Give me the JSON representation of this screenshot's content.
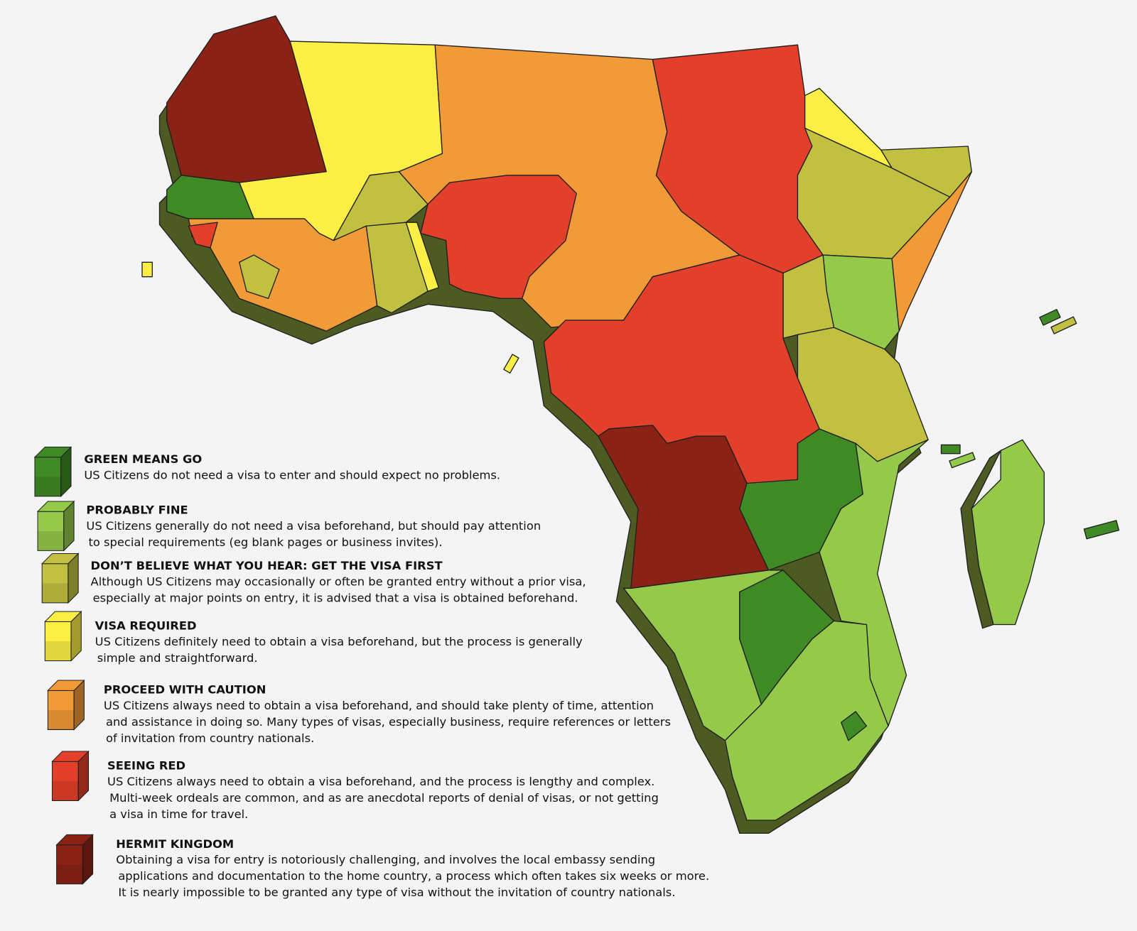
{
  "legend": {
    "items": [
      {
        "title": "GREEN MEANS GO",
        "color": "#3f8a24",
        "lines": [
          "US Citizens do not need a visa to enter and should expect no problems."
        ]
      },
      {
        "title": "PROBABLY FINE",
        "color": "#95c94a",
        "lines": [
          "US Citizens generally do not need a visa beforehand, but should pay attention",
          "to special requirements (eg blank pages or business invites)."
        ]
      },
      {
        "title": "DON’T BELIEVE WHAT YOU HEAR: GET THE VISA FIRST",
        "color": "#c2c041",
        "lines": [
          "Although US Citizens may occasionally or often be granted entry without a prior visa,",
          "especially at major points on entry,  it is advised that a visa is obtained beforehand."
        ]
      },
      {
        "title": "VISA REQUIRED",
        "color": "#fbef45",
        "lines": [
          "US Citizens definitely need to obtain a visa beforehand, but the process is generally",
          "simple and straightforward."
        ]
      },
      {
        "title": "PROCEED WITH CAUTION",
        "color": "#f19a38",
        "lines": [
          "US Citizens always need to obtain a visa beforehand, and should take plenty of time,  attention",
          "and assistance in doing so. Many types of visas, especially business, require references or letters",
          "of invitation from country nationals."
        ]
      },
      {
        "title": "SEEING RED",
        "color": "#e2402a",
        "lines": [
          "US Citizens always need to obtain a visa beforehand, and the process is lengthy and complex.",
          "Multi-week ordeals are common, and as are anecdotal reports of denial of visas, or not getting",
          "a visa in time for travel."
        ]
      },
      {
        "title": "HERMIT KINGDOM",
        "color": "#8a2216",
        "lines": [
          "Obtaining a visa for entry is notoriously challenging, and involves the local embassy sending",
          "applications and documentation to the home country, a process which often takes six weeks or more.",
          "It is nearly impossible to be granted any type of visa without the invitation of country nationals."
        ]
      }
    ]
  }
}
